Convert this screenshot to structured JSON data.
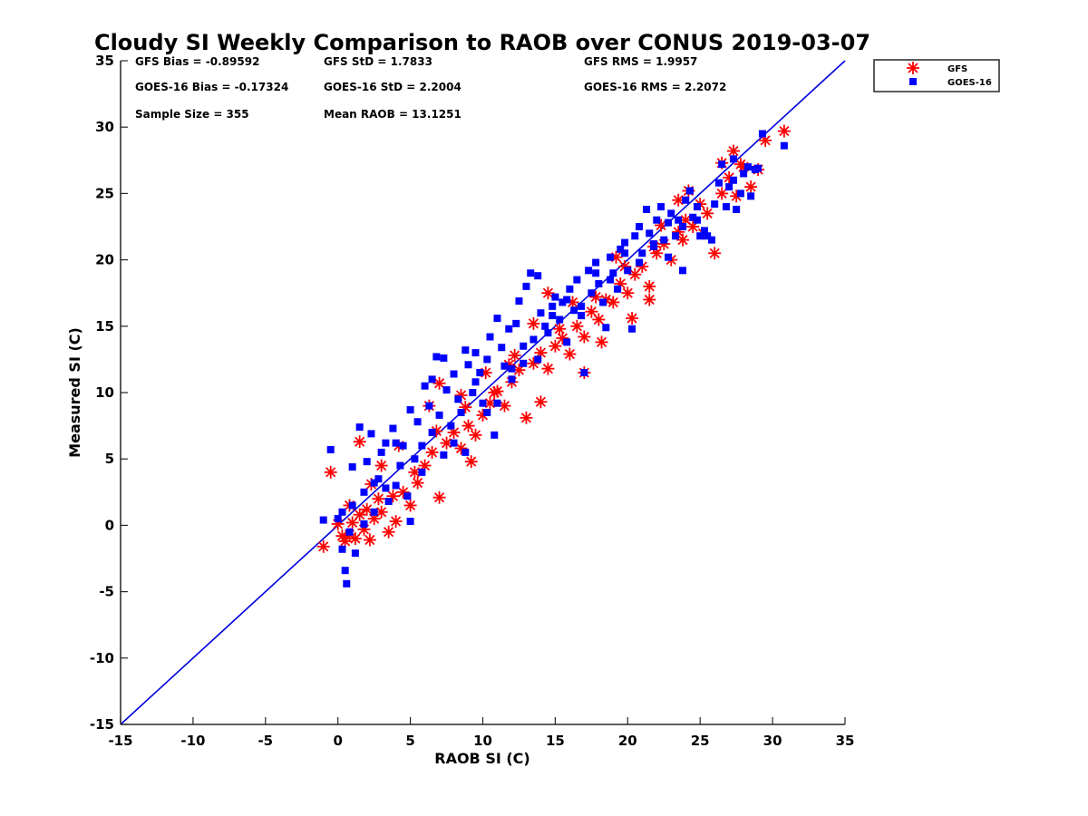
{
  "chart_data": {
    "type": "scatter",
    "title": "Cloudy SI Weekly Comparison to RAOB over CONUS 2019-03-07",
    "xlabel": "RAOB SI (C)",
    "ylabel": "Measured SI (C)",
    "xlim": [
      -15,
      35
    ],
    "ylim": [
      -15,
      35
    ],
    "xticks": [
      "-15",
      "-10",
      "-5",
      "0",
      "5",
      "10",
      "15",
      "20",
      "25",
      "30",
      "35"
    ],
    "yticks": [
      "-15",
      "-10",
      "-5",
      "0",
      "5",
      "10",
      "15",
      "20",
      "25",
      "30",
      "35"
    ],
    "grid": false,
    "legend_position": "outside-top-right",
    "one_to_one_line": {
      "x": [
        -15,
        35
      ],
      "y": [
        -15,
        35
      ],
      "color": "#0000dd"
    },
    "stats": [
      "GFS Bias = -0.89592",
      "GFS StD = 1.7833",
      "GFS RMS = 1.9957",
      "GOES-16 Bias = -0.17324",
      "GOES-16 StD = 2.2004",
      "GOES-16 RMS = 2.2072",
      "Sample Size = 355",
      "Mean RAOB = 13.1251"
    ],
    "series": [
      {
        "name": "GFS",
        "color": "#ff0000",
        "marker": "asterisk",
        "points": [
          [
            -1.0,
            -1.6
          ],
          [
            0.0,
            0.1
          ],
          [
            0.3,
            -0.8
          ],
          [
            0.5,
            -1.2
          ],
          [
            0.8,
            -0.7
          ],
          [
            1.0,
            0.2
          ],
          [
            1.2,
            -1.0
          ],
          [
            1.5,
            0.8
          ],
          [
            1.8,
            -0.3
          ],
          [
            2.0,
            1.2
          ],
          [
            2.2,
            -1.1
          ],
          [
            2.5,
            0.5
          ],
          [
            2.8,
            2.0
          ],
          [
            3.0,
            1.0
          ],
          [
            3.5,
            -0.5
          ],
          [
            4.0,
            0.3
          ],
          [
            4.5,
            2.5
          ],
          [
            5.0,
            1.5
          ],
          [
            5.5,
            3.2
          ],
          [
            6.0,
            4.5
          ],
          [
            6.5,
            5.5
          ],
          [
            7.0,
            2.1
          ],
          [
            7.5,
            6.2
          ],
          [
            8.0,
            7.0
          ],
          [
            8.5,
            5.8
          ],
          [
            9.0,
            7.5
          ],
          [
            9.5,
            6.8
          ],
          [
            10.0,
            8.3
          ],
          [
            10.5,
            9.2
          ],
          [
            11.0,
            10.1
          ],
          [
            11.5,
            9.0
          ],
          [
            12.0,
            10.8
          ],
          [
            12.5,
            11.7
          ],
          [
            13.0,
            8.1
          ],
          [
            13.5,
            12.2
          ],
          [
            14.0,
            13.0
          ],
          [
            14.5,
            11.8
          ],
          [
            15.0,
            13.5
          ],
          [
            15.5,
            14.1
          ],
          [
            16.0,
            12.9
          ],
          [
            16.5,
            15.0
          ],
          [
            17.0,
            14.2
          ],
          [
            17.5,
            16.1
          ],
          [
            18.0,
            15.5
          ],
          [
            18.5,
            17.0
          ],
          [
            19.0,
            16.8
          ],
          [
            19.5,
            18.2
          ],
          [
            20.0,
            17.5
          ],
          [
            20.5,
            18.9
          ],
          [
            21.0,
            19.5
          ],
          [
            21.5,
            18.0
          ],
          [
            22.0,
            20.5
          ],
          [
            22.5,
            21.2
          ],
          [
            23.0,
            20.0
          ],
          [
            23.5,
            22.1
          ],
          [
            24.0,
            23.0
          ],
          [
            24.5,
            22.5
          ],
          [
            25.0,
            24.2
          ],
          [
            25.5,
            23.5
          ],
          [
            26.0,
            20.5
          ],
          [
            26.5,
            25.0
          ],
          [
            27.0,
            26.2
          ],
          [
            27.5,
            24.8
          ],
          [
            28.0,
            27.0
          ],
          [
            28.5,
            25.5
          ],
          [
            29.0,
            26.8
          ],
          [
            29.5,
            29.0
          ],
          [
            30.8,
            29.7
          ],
          [
            -0.5,
            4.0
          ],
          [
            1.5,
            6.3
          ],
          [
            3.0,
            4.5
          ],
          [
            4.2,
            6.0
          ],
          [
            6.3,
            9.0
          ],
          [
            7.0,
            10.7
          ],
          [
            8.5,
            9.8
          ],
          [
            9.2,
            4.8
          ],
          [
            10.2,
            11.5
          ],
          [
            11.8,
            12.1
          ],
          [
            13.5,
            15.2
          ],
          [
            14.0,
            9.3
          ],
          [
            14.5,
            17.5
          ],
          [
            16.2,
            16.8
          ],
          [
            17.0,
            11.5
          ],
          [
            18.2,
            13.8
          ],
          [
            19.2,
            20.2
          ],
          [
            20.3,
            15.6
          ],
          [
            21.5,
            17.0
          ],
          [
            22.3,
            22.6
          ],
          [
            23.5,
            24.5
          ],
          [
            24.2,
            25.2
          ],
          [
            25.2,
            22.0
          ],
          [
            26.5,
            27.3
          ],
          [
            27.3,
            28.2
          ],
          [
            27.8,
            27.2
          ],
          [
            0.8,
            1.5
          ],
          [
            2.3,
            3.1
          ],
          [
            3.8,
            2.2
          ],
          [
            5.3,
            4.0
          ],
          [
            6.8,
            7.1
          ],
          [
            8.8,
            8.9
          ],
          [
            10.8,
            10.0
          ],
          [
            12.2,
            12.8
          ],
          [
            15.3,
            14.8
          ],
          [
            17.8,
            17.2
          ],
          [
            19.8,
            19.5
          ],
          [
            21.8,
            21.0
          ],
          [
            23.8,
            21.5
          ]
        ]
      },
      {
        "name": "GOES-16",
        "color": "#0000ff",
        "marker": "square",
        "points": [
          [
            -1.0,
            0.4
          ],
          [
            -0.5,
            5.7
          ],
          [
            0.0,
            0.5
          ],
          [
            0.3,
            -1.8
          ],
          [
            0.5,
            -3.4
          ],
          [
            0.6,
            -4.4
          ],
          [
            0.8,
            -0.5
          ],
          [
            1.0,
            1.5
          ],
          [
            1.2,
            -2.1
          ],
          [
            1.5,
            7.4
          ],
          [
            1.8,
            2.5
          ],
          [
            2.0,
            4.8
          ],
          [
            2.3,
            6.9
          ],
          [
            2.5,
            1.0
          ],
          [
            2.8,
            3.5
          ],
          [
            3.0,
            5.5
          ],
          [
            3.3,
            6.2
          ],
          [
            3.5,
            1.8
          ],
          [
            3.8,
            7.3
          ],
          [
            4.0,
            3.0
          ],
          [
            4.3,
            4.5
          ],
          [
            4.5,
            6.0
          ],
          [
            4.8,
            2.2
          ],
          [
            5.0,
            8.7
          ],
          [
            5.3,
            5.0
          ],
          [
            5.5,
            7.8
          ],
          [
            5.8,
            4.0
          ],
          [
            6.0,
            10.5
          ],
          [
            6.3,
            9.0
          ],
          [
            6.5,
            11.0
          ],
          [
            6.8,
            12.7
          ],
          [
            7.0,
            8.3
          ],
          [
            7.3,
            5.3
          ],
          [
            7.5,
            10.2
          ],
          [
            7.8,
            7.5
          ],
          [
            8.0,
            11.4
          ],
          [
            8.3,
            9.5
          ],
          [
            8.5,
            8.5
          ],
          [
            8.8,
            13.2
          ],
          [
            9.0,
            12.1
          ],
          [
            9.3,
            10.0
          ],
          [
            9.5,
            13.0
          ],
          [
            9.8,
            11.5
          ],
          [
            10.0,
            9.2
          ],
          [
            10.3,
            12.5
          ],
          [
            10.5,
            14.2
          ],
          [
            10.8,
            6.8
          ],
          [
            11.0,
            15.6
          ],
          [
            11.3,
            13.4
          ],
          [
            11.5,
            12.0
          ],
          [
            11.8,
            14.8
          ],
          [
            12.0,
            11.0
          ],
          [
            12.3,
            15.2
          ],
          [
            12.5,
            16.9
          ],
          [
            12.8,
            13.5
          ],
          [
            13.0,
            18.0
          ],
          [
            13.3,
            19.0
          ],
          [
            13.5,
            14.0
          ],
          [
            13.8,
            18.8
          ],
          [
            14.0,
            16.0
          ],
          [
            14.3,
            15.0
          ],
          [
            14.5,
            14.5
          ],
          [
            14.8,
            16.5
          ],
          [
            15.0,
            17.2
          ],
          [
            15.3,
            15.5
          ],
          [
            15.5,
            16.8
          ],
          [
            15.8,
            13.8
          ],
          [
            16.0,
            17.8
          ],
          [
            16.3,
            16.2
          ],
          [
            16.5,
            18.5
          ],
          [
            16.8,
            15.8
          ],
          [
            17.0,
            11.5
          ],
          [
            17.3,
            19.2
          ],
          [
            17.5,
            17.5
          ],
          [
            17.8,
            19.8
          ],
          [
            18.0,
            18.2
          ],
          [
            18.3,
            16.8
          ],
          [
            18.5,
            14.9
          ],
          [
            18.8,
            20.2
          ],
          [
            19.0,
            19.0
          ],
          [
            19.3,
            17.8
          ],
          [
            19.5,
            20.8
          ],
          [
            19.8,
            21.3
          ],
          [
            20.0,
            19.2
          ],
          [
            20.3,
            14.8
          ],
          [
            20.5,
            21.8
          ],
          [
            20.8,
            22.5
          ],
          [
            21.0,
            20.5
          ],
          [
            21.3,
            23.8
          ],
          [
            21.5,
            22.0
          ],
          [
            21.8,
            21.2
          ],
          [
            22.0,
            23.0
          ],
          [
            22.3,
            24.0
          ],
          [
            22.5,
            21.5
          ],
          [
            22.8,
            22.8
          ],
          [
            23.0,
            23.5
          ],
          [
            23.3,
            21.8
          ],
          [
            23.5,
            23.0
          ],
          [
            23.8,
            19.2
          ],
          [
            24.0,
            24.5
          ],
          [
            24.3,
            25.2
          ],
          [
            24.5,
            23.2
          ],
          [
            24.8,
            23.0
          ],
          [
            25.0,
            21.8
          ],
          [
            25.3,
            22.2
          ],
          [
            25.8,
            21.5
          ],
          [
            26.0,
            24.2
          ],
          [
            26.3,
            25.8
          ],
          [
            26.5,
            27.2
          ],
          [
            26.8,
            24.0
          ],
          [
            27.0,
            25.5
          ],
          [
            27.3,
            26.0
          ],
          [
            27.5,
            23.8
          ],
          [
            27.8,
            25.0
          ],
          [
            28.0,
            26.5
          ],
          [
            28.3,
            27.0
          ],
          [
            28.5,
            24.8
          ],
          [
            29.0,
            26.9
          ],
          [
            29.3,
            29.5
          ],
          [
            30.8,
            28.6
          ],
          [
            0.3,
            1.0
          ],
          [
            1.0,
            4.4
          ],
          [
            1.8,
            0.1
          ],
          [
            2.5,
            3.2
          ],
          [
            3.3,
            2.8
          ],
          [
            4.0,
            6.2
          ],
          [
            5.0,
            0.3
          ],
          [
            5.8,
            6.0
          ],
          [
            6.5,
            7.0
          ],
          [
            7.3,
            12.6
          ],
          [
            8.0,
            6.2
          ],
          [
            8.8,
            5.5
          ],
          [
            9.5,
            10.8
          ],
          [
            10.3,
            8.5
          ],
          [
            11.0,
            9.2
          ],
          [
            12.0,
            11.8
          ],
          [
            12.8,
            12.2
          ],
          [
            13.8,
            12.5
          ],
          [
            14.8,
            15.8
          ],
          [
            15.8,
            17.0
          ],
          [
            16.8,
            16.5
          ],
          [
            17.8,
            19.0
          ],
          [
            18.8,
            18.5
          ],
          [
            19.8,
            20.5
          ],
          [
            20.8,
            19.8
          ],
          [
            21.8,
            21.0
          ],
          [
            22.8,
            20.2
          ],
          [
            23.8,
            22.5
          ],
          [
            24.8,
            24.0
          ],
          [
            25.5,
            21.8
          ],
          [
            27.3,
            27.6
          ],
          [
            28.8,
            26.8
          ]
        ]
      }
    ]
  }
}
